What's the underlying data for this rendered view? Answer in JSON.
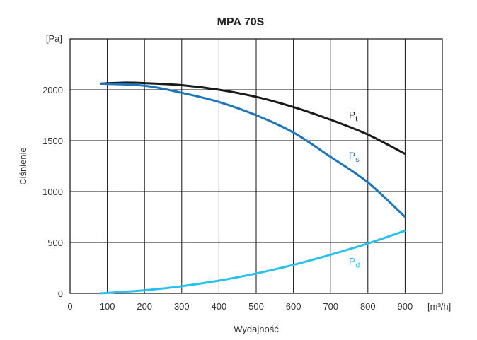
{
  "chart_data": {
    "type": "line",
    "title": "MPA 70S",
    "xlabel": "Wydajność",
    "ylabel": "Ciśnienie",
    "x_unit": "[m³/h]",
    "y_unit": "[Pa]",
    "xlim": [
      0,
      1000
    ],
    "ylim": [
      0,
      2500
    ],
    "grid": true,
    "x_ticks": [
      "0",
      "100",
      "200",
      "300",
      "400",
      "500",
      "600",
      "700",
      "800",
      "900"
    ],
    "y_ticks": [
      "0",
      "500",
      "1000",
      "1500",
      "2000"
    ],
    "series": [
      {
        "name": "Pt",
        "label_main": "P",
        "label_sub": "t",
        "color": "#1a1a1a",
        "x": [
          80,
          150,
          200,
          300,
          400,
          500,
          600,
          700,
          800,
          900
        ],
        "y": [
          2060,
          2070,
          2065,
          2045,
          2000,
          1930,
          1830,
          1705,
          1560,
          1370
        ]
      },
      {
        "name": "Ps",
        "label_main": "P",
        "label_sub": "s",
        "color": "#1c75bc",
        "x": [
          80,
          200,
          300,
          400,
          500,
          600,
          700,
          800,
          900
        ],
        "y": [
          2060,
          2040,
          1970,
          1880,
          1750,
          1580,
          1340,
          1090,
          750
        ]
      },
      {
        "name": "Pd",
        "label_main": "P",
        "label_sub": "d",
        "color": "#29c0f0",
        "x": [
          80,
          200,
          300,
          400,
          500,
          600,
          700,
          800,
          900
        ],
        "y": [
          0,
          30,
          70,
          125,
          195,
          280,
          380,
          490,
          615
        ]
      }
    ],
    "label_positions": [
      {
        "series": "Pt",
        "x": 745,
        "y": 1720
      },
      {
        "series": "Ps",
        "x": 745,
        "y": 1320
      },
      {
        "series": "Pd",
        "x": 745,
        "y": 280
      }
    ],
    "ylabel_color": "#7b2d5a"
  }
}
